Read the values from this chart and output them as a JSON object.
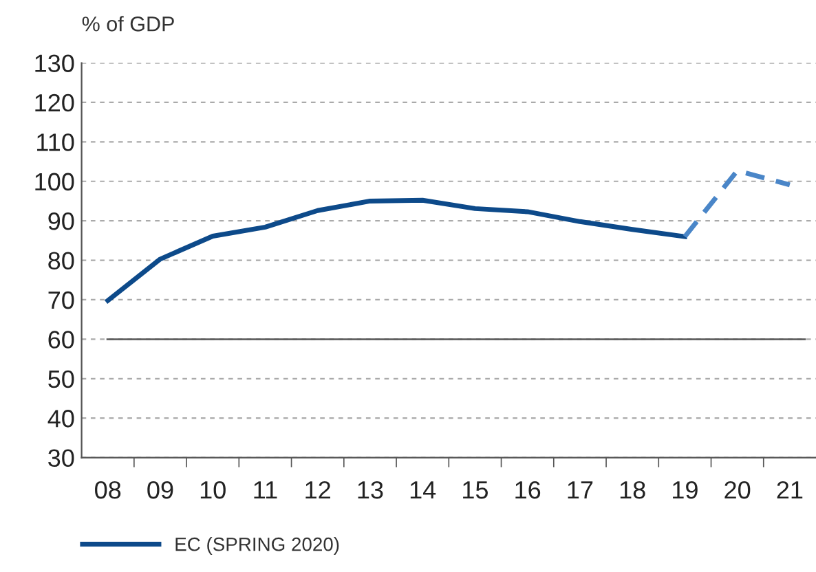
{
  "chart_data": {
    "type": "line",
    "ylabel": "% of GDP",
    "categories": [
      "08",
      "09",
      "10",
      "11",
      "12",
      "13",
      "14",
      "15",
      "16",
      "17",
      "18",
      "19",
      "20",
      "21"
    ],
    "series": [
      {
        "name": "EC (SPRING 2020)",
        "color": "#0d4a8a",
        "line_style": "solid",
        "values": [
          69.8,
          80.3,
          86.1,
          88.4,
          92.6,
          95.0,
          95.2,
          93.1,
          92.3,
          89.8,
          87.8,
          86.0,
          null,
          null
        ]
      },
      {
        "color": "#4a86c8",
        "line_style": "dashed",
        "values": [
          null,
          null,
          null,
          null,
          null,
          null,
          null,
          null,
          null,
          null,
          null,
          86.0,
          102.7,
          99.1
        ]
      }
    ],
    "ylim": [
      30,
      130
    ],
    "yticks": [
      30,
      40,
      50,
      60,
      70,
      80,
      90,
      100,
      110,
      120,
      130
    ],
    "ref_lines": [
      {
        "axis": "y",
        "value": 60,
        "color": "#555555",
        "line_style": "solid"
      }
    ],
    "grid": "y",
    "legend": "bottom"
  }
}
